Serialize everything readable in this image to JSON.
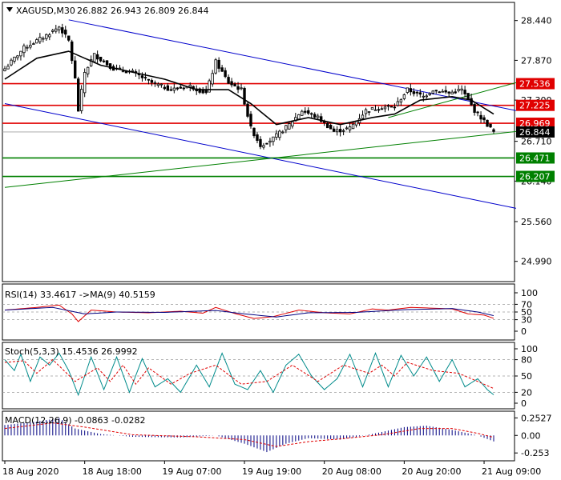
{
  "colors": {
    "background": "#ffffff",
    "frame": "#000000",
    "candle": "#000000",
    "ma_main": "#000000",
    "channel": "#0000cc",
    "support_line": "#008000",
    "resistance_line": "#e00000",
    "price_label_bg": "#000000",
    "rsi_line": "#000080",
    "rsi_signal": "#e00000",
    "stoch_main": "#008b8b",
    "stoch_signal": "#e00000",
    "macd_hist": "#000080",
    "macd_signal": "#e00000"
  },
  "header": {
    "symbol": "XAGUSD,M30",
    "ohlc": "26.882 26.943 26.809 26.844",
    "menu_icon": "triangle-down-icon"
  },
  "chart_data": [
    {
      "type": "candlestick",
      "symbol": "XAGUSD",
      "timeframe": "M30",
      "ylim": [
        24.7,
        28.7
      ],
      "y_ticks": [
        "28.440",
        "27.870",
        "27.300",
        "26.710",
        "26.140",
        "25.560",
        "24.990"
      ],
      "x_labels": [
        "18 Aug 2020",
        "18 Aug 18:00",
        "19 Aug 07:00",
        "19 Aug 19:00",
        "20 Aug 08:00",
        "20 Aug 20:00",
        "21 Aug 09:00"
      ],
      "x_label_index": [
        0,
        25,
        50,
        75,
        100,
        125,
        150
      ],
      "num_bars": 154,
      "current_price": 26.844,
      "close_path": [
        {
          "i": 0,
          "v": 27.75
        },
        {
          "i": 6,
          "v": 28.05
        },
        {
          "i": 12,
          "v": 28.2
        },
        {
          "i": 17,
          "v": 28.35
        },
        {
          "i": 20,
          "v": 28.15
        },
        {
          "i": 22,
          "v": 27.6
        },
        {
          "i": 23,
          "v": 27.15
        },
        {
          "i": 25,
          "v": 27.7
        },
        {
          "i": 28,
          "v": 27.95
        },
        {
          "i": 34,
          "v": 27.75
        },
        {
          "i": 40,
          "v": 27.7
        },
        {
          "i": 46,
          "v": 27.55
        },
        {
          "i": 52,
          "v": 27.45
        },
        {
          "i": 58,
          "v": 27.5
        },
        {
          "i": 63,
          "v": 27.4
        },
        {
          "i": 66,
          "v": 27.85
        },
        {
          "i": 70,
          "v": 27.55
        },
        {
          "i": 74,
          "v": 27.45
        },
        {
          "i": 77,
          "v": 26.9
        },
        {
          "i": 80,
          "v": 26.65
        },
        {
          "i": 84,
          "v": 26.75
        },
        {
          "i": 89,
          "v": 26.95
        },
        {
          "i": 93,
          "v": 27.15
        },
        {
          "i": 98,
          "v": 27.05
        },
        {
          "i": 103,
          "v": 26.85
        },
        {
          "i": 108,
          "v": 26.9
        },
        {
          "i": 113,
          "v": 27.15
        },
        {
          "i": 118,
          "v": 27.2
        },
        {
          "i": 122,
          "v": 27.2
        },
        {
          "i": 126,
          "v": 27.45
        },
        {
          "i": 131,
          "v": 27.35
        },
        {
          "i": 134,
          "v": 27.45
        },
        {
          "i": 139,
          "v": 27.4
        },
        {
          "i": 143,
          "v": 27.45
        },
        {
          "i": 147,
          "v": 27.15
        },
        {
          "i": 150,
          "v": 27.0
        },
        {
          "i": 153,
          "v": 26.844
        }
      ],
      "ma_path": [
        {
          "i": 0,
          "v": 27.6
        },
        {
          "i": 10,
          "v": 27.9
        },
        {
          "i": 20,
          "v": 28.0
        },
        {
          "i": 30,
          "v": 27.8
        },
        {
          "i": 40,
          "v": 27.7
        },
        {
          "i": 50,
          "v": 27.6
        },
        {
          "i": 60,
          "v": 27.45
        },
        {
          "i": 70,
          "v": 27.45
        },
        {
          "i": 77,
          "v": 27.25
        },
        {
          "i": 85,
          "v": 26.95
        },
        {
          "i": 95,
          "v": 27.05
        },
        {
          "i": 105,
          "v": 26.95
        },
        {
          "i": 115,
          "v": 27.05
        },
        {
          "i": 122,
          "v": 27.1
        },
        {
          "i": 130,
          "v": 27.3
        },
        {
          "i": 140,
          "v": 27.35
        },
        {
          "i": 146,
          "v": 27.3
        },
        {
          "i": 153,
          "v": 27.1
        }
      ],
      "levels": [
        {
          "value": 27.536,
          "label": "27.536",
          "color": "#e00000",
          "kind": "resistance",
          "labeled": true
        },
        {
          "value": 27.225,
          "label": "27.225",
          "color": "#e00000",
          "kind": "resistance",
          "labeled": true
        },
        {
          "value": 26.969,
          "label": "26.969",
          "color": "#e00000",
          "kind": "resistance",
          "labeled": true
        },
        {
          "value": 26.471,
          "label": "26.471",
          "color": "#008000",
          "kind": "support",
          "labeled": true
        },
        {
          "value": 26.207,
          "label": "26.207",
          "color": "#008000",
          "kind": "support",
          "labeled": true
        }
      ],
      "trend_lines": [
        {
          "name": "channel-upper",
          "color": "#0000cc",
          "start": {
            "i": 20,
            "v": 28.45
          },
          "end": {
            "i": 160,
            "v": 27.15
          }
        },
        {
          "name": "channel-lower",
          "color": "#0000cc",
          "start": {
            "i": 0,
            "v": 27.25
          },
          "end": {
            "i": 160,
            "v": 25.75
          }
        },
        {
          "name": "support-trend",
          "color": "#008000",
          "start": {
            "i": 0,
            "v": 26.05
          },
          "end": {
            "i": 160,
            "v": 26.85
          }
        },
        {
          "name": "support-trend-upper",
          "color": "#008000",
          "start": {
            "i": 120,
            "v": 27.05
          },
          "end": {
            "i": 160,
            "v": 27.55
          }
        }
      ]
    },
    {
      "type": "line",
      "name": "RSI",
      "label": "RSI(14) 33.4617 ->MA(9) 40.5159",
      "ylim": [
        0,
        100
      ],
      "y_ticks": [
        "100",
        "70",
        "50",
        "30",
        "0"
      ],
      "levels": [
        70,
        50,
        30
      ],
      "series": [
        {
          "name": "RSI(14)",
          "color": "#e00000",
          "points": [
            {
              "i": 0,
              "v": 55
            },
            {
              "i": 10,
              "v": 62
            },
            {
              "i": 17,
              "v": 68
            },
            {
              "i": 21,
              "v": 45
            },
            {
              "i": 23,
              "v": 25
            },
            {
              "i": 27,
              "v": 55
            },
            {
              "i": 35,
              "v": 50
            },
            {
              "i": 45,
              "v": 48
            },
            {
              "i": 55,
              "v": 52
            },
            {
              "i": 62,
              "v": 47
            },
            {
              "i": 66,
              "v": 62
            },
            {
              "i": 72,
              "v": 46
            },
            {
              "i": 78,
              "v": 33
            },
            {
              "i": 84,
              "v": 38
            },
            {
              "i": 92,
              "v": 55
            },
            {
              "i": 100,
              "v": 48
            },
            {
              "i": 108,
              "v": 45
            },
            {
              "i": 115,
              "v": 58
            },
            {
              "i": 120,
              "v": 55
            },
            {
              "i": 127,
              "v": 62
            },
            {
              "i": 134,
              "v": 60
            },
            {
              "i": 140,
              "v": 58
            },
            {
              "i": 145,
              "v": 45
            },
            {
              "i": 150,
              "v": 42
            },
            {
              "i": 153,
              "v": 33.46
            }
          ]
        },
        {
          "name": "MA(9)",
          "color": "#000080",
          "points": [
            {
              "i": 0,
              "v": 55
            },
            {
              "i": 15,
              "v": 62
            },
            {
              "i": 25,
              "v": 45
            },
            {
              "i": 35,
              "v": 50
            },
            {
              "i": 50,
              "v": 49
            },
            {
              "i": 66,
              "v": 54
            },
            {
              "i": 75,
              "v": 45
            },
            {
              "i": 85,
              "v": 37
            },
            {
              "i": 95,
              "v": 48
            },
            {
              "i": 110,
              "v": 49
            },
            {
              "i": 125,
              "v": 56
            },
            {
              "i": 140,
              "v": 59
            },
            {
              "i": 148,
              "v": 50
            },
            {
              "i": 153,
              "v": 40.52
            }
          ]
        }
      ]
    },
    {
      "type": "line",
      "name": "Stochastic",
      "label": "Stoch(5,3,3) 15.4536 26.9992",
      "ylim": [
        0,
        100
      ],
      "y_ticks": [
        "100",
        "80",
        "50",
        "20",
        "0"
      ],
      "levels": [
        80,
        50,
        20
      ],
      "series": [
        {
          "name": "%K",
          "color": "#008b8b",
          "points": [
            {
              "i": 0,
              "v": 80
            },
            {
              "i": 3,
              "v": 60
            },
            {
              "i": 5,
              "v": 90
            },
            {
              "i": 8,
              "v": 40
            },
            {
              "i": 11,
              "v": 85
            },
            {
              "i": 14,
              "v": 70
            },
            {
              "i": 17,
              "v": 92
            },
            {
              "i": 20,
              "v": 60
            },
            {
              "i": 23,
              "v": 15
            },
            {
              "i": 27,
              "v": 85
            },
            {
              "i": 31,
              "v": 25
            },
            {
              "i": 35,
              "v": 85
            },
            {
              "i": 39,
              "v": 20
            },
            {
              "i": 43,
              "v": 82
            },
            {
              "i": 47,
              "v": 30
            },
            {
              "i": 51,
              "v": 45
            },
            {
              "i": 55,
              "v": 20
            },
            {
              "i": 60,
              "v": 70
            },
            {
              "i": 64,
              "v": 30
            },
            {
              "i": 68,
              "v": 92
            },
            {
              "i": 72,
              "v": 35
            },
            {
              "i": 76,
              "v": 25
            },
            {
              "i": 80,
              "v": 60
            },
            {
              "i": 84,
              "v": 20
            },
            {
              "i": 88,
              "v": 70
            },
            {
              "i": 92,
              "v": 90
            },
            {
              "i": 96,
              "v": 50
            },
            {
              "i": 100,
              "v": 25
            },
            {
              "i": 104,
              "v": 45
            },
            {
              "i": 108,
              "v": 90
            },
            {
              "i": 112,
              "v": 30
            },
            {
              "i": 116,
              "v": 92
            },
            {
              "i": 120,
              "v": 30
            },
            {
              "i": 124,
              "v": 88
            },
            {
              "i": 128,
              "v": 50
            },
            {
              "i": 132,
              "v": 85
            },
            {
              "i": 136,
              "v": 40
            },
            {
              "i": 140,
              "v": 80
            },
            {
              "i": 144,
              "v": 30
            },
            {
              "i": 148,
              "v": 45
            },
            {
              "i": 151,
              "v": 25
            },
            {
              "i": 153,
              "v": 15.45
            }
          ]
        },
        {
          "name": "%D",
          "color": "#e00000",
          "points": [
            {
              "i": 0,
              "v": 75
            },
            {
              "i": 6,
              "v": 78
            },
            {
              "i": 10,
              "v": 55
            },
            {
              "i": 15,
              "v": 80
            },
            {
              "i": 22,
              "v": 40
            },
            {
              "i": 29,
              "v": 65
            },
            {
              "i": 33,
              "v": 40
            },
            {
              "i": 37,
              "v": 70
            },
            {
              "i": 41,
              "v": 35
            },
            {
              "i": 45,
              "v": 65
            },
            {
              "i": 52,
              "v": 35
            },
            {
              "i": 58,
              "v": 55
            },
            {
              "i": 66,
              "v": 70
            },
            {
              "i": 74,
              "v": 35
            },
            {
              "i": 82,
              "v": 40
            },
            {
              "i": 90,
              "v": 70
            },
            {
              "i": 98,
              "v": 40
            },
            {
              "i": 106,
              "v": 70
            },
            {
              "i": 114,
              "v": 55
            },
            {
              "i": 118,
              "v": 70
            },
            {
              "i": 122,
              "v": 50
            },
            {
              "i": 126,
              "v": 75
            },
            {
              "i": 134,
              "v": 60
            },
            {
              "i": 142,
              "v": 55
            },
            {
              "i": 148,
              "v": 40
            },
            {
              "i": 153,
              "v": 27.0
            }
          ]
        }
      ]
    },
    {
      "type": "histogram",
      "name": "MACD",
      "label": "MACD(12,26,9) -0.0863 -0.0282",
      "ylim": [
        -0.32,
        0.28
      ],
      "y_ticks": [
        "0.2527",
        "0.00",
        "-0.253"
      ],
      "histogram": [
        {
          "i": 0,
          "v": 0.15
        },
        {
          "i": 10,
          "v": 0.2
        },
        {
          "i": 17,
          "v": 0.25
        },
        {
          "i": 22,
          "v": 0.1
        },
        {
          "i": 30,
          "v": 0.02
        },
        {
          "i": 40,
          "v": -0.02
        },
        {
          "i": 55,
          "v": -0.03
        },
        {
          "i": 66,
          "v": 0.0
        },
        {
          "i": 75,
          "v": -0.12
        },
        {
          "i": 82,
          "v": -0.24
        },
        {
          "i": 88,
          "v": -0.12
        },
        {
          "i": 95,
          "v": -0.04
        },
        {
          "i": 105,
          "v": -0.06
        },
        {
          "i": 115,
          "v": 0.02
        },
        {
          "i": 125,
          "v": 0.12
        },
        {
          "i": 132,
          "v": 0.14
        },
        {
          "i": 140,
          "v": 0.08
        },
        {
          "i": 148,
          "v": 0.0
        },
        {
          "i": 153,
          "v": -0.0863
        }
      ],
      "signal": [
        {
          "i": 0,
          "v": 0.1
        },
        {
          "i": 15,
          "v": 0.18
        },
        {
          "i": 25,
          "v": 0.12
        },
        {
          "i": 40,
          "v": 0.01
        },
        {
          "i": 60,
          "v": -0.02
        },
        {
          "i": 75,
          "v": -0.06
        },
        {
          "i": 85,
          "v": -0.16
        },
        {
          "i": 95,
          "v": -0.09
        },
        {
          "i": 105,
          "v": -0.05
        },
        {
          "i": 118,
          "v": 0.01
        },
        {
          "i": 130,
          "v": 0.1
        },
        {
          "i": 140,
          "v": 0.1
        },
        {
          "i": 148,
          "v": 0.03
        },
        {
          "i": 153,
          "v": -0.0282
        }
      ],
      "signal_color": "#e00000",
      "hist_color": "#000080"
    }
  ]
}
